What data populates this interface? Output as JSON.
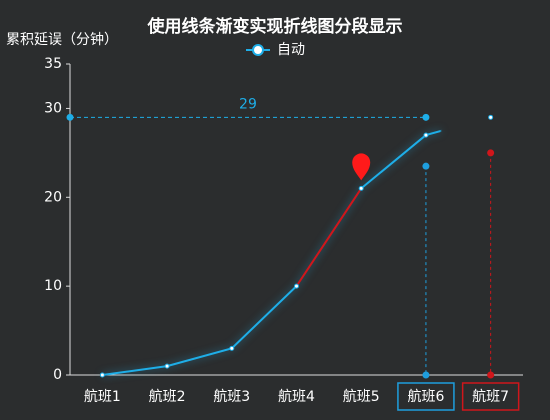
{
  "chart_data": {
    "type": "line",
    "title": "使用线条渐变实现折线图分段显示",
    "y_axis_label": "累积延误（分钟）",
    "categories": [
      "航班1",
      "航班2",
      "航班3",
      "航班4",
      "航班5",
      "航班6",
      "航班7"
    ],
    "series": [
      {
        "name": "自动",
        "color": "#1eaee8",
        "values": [
          0,
          1,
          3,
          10,
          21,
          27,
          29
        ]
      }
    ],
    "pieces": [
      {
        "from": "航班4",
        "to": "航班5",
        "color": "#d0161b"
      }
    ],
    "fade_from": "航班6",
    "mark_point": {
      "x": "航班5",
      "color": "#ff1a1a"
    },
    "mark_lines": [
      {
        "value": 29,
        "color": "#1eaee8"
      }
    ],
    "vertical_marks": [
      {
        "x": "航班6",
        "value": 23.5,
        "color": "#1e9ede"
      },
      {
        "x": "航班7",
        "value": 25,
        "color": "#d0161b"
      }
    ],
    "ylim": [
      0,
      35
    ],
    "yticks": [
      0,
      10,
      20,
      30,
      35
    ],
    "grid": false
  }
}
